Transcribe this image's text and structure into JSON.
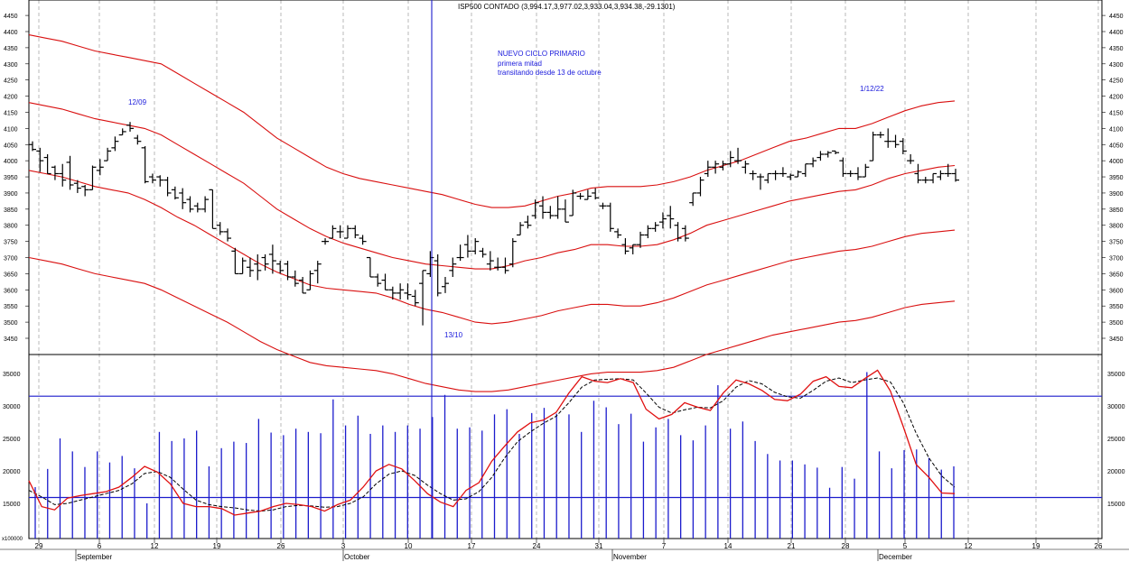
{
  "title": "ISP500 CONTADO (3,994.17,3,977.02,3,933.04,3,934.38,-29.1301)",
  "annotations": {
    "cycle_title": "NUEVO CICLO PRIMARIO",
    "cycle_line1": "primera mitad",
    "cycle_line2": "transitando desde 13 de octubre",
    "top_sep": "12/09",
    "bottom_oct": "13/10",
    "top_dec": "1/12/22"
  },
  "volume_unit_label": "x100000",
  "colors": {
    "bars": "#000000",
    "bands": "#d90f0f",
    "volume": "#1c1ccc",
    "oscillator_fast": "#e01010",
    "oscillator_slow": "#000000",
    "grid": "#a8a8a8"
  },
  "chart_data": [
    {
      "type": "ohlc",
      "name": "price",
      "ylim": [
        3400,
        4470
      ],
      "y_ticks": [
        3450,
        3500,
        3550,
        3600,
        3650,
        3700,
        3750,
        3800,
        3850,
        3900,
        3950,
        4000,
        4050,
        4100,
        4150,
        4200,
        4250,
        4300,
        4350,
        4400,
        4450
      ],
      "date_ticks": [
        "29",
        "6",
        "12",
        "19",
        "26",
        "3",
        "10",
        "17",
        "24",
        "31",
        "7",
        "14",
        "21",
        "28",
        "5",
        "12",
        "19",
        "26"
      ],
      "month_labels": [
        "September",
        "October",
        "November",
        "December"
      ],
      "ohlc": [
        [
          4050,
          4060,
          4030,
          4035
        ],
        [
          4030,
          4040,
          3965,
          4000
        ],
        [
          4010,
          4020,
          3960,
          3960
        ],
        [
          3980,
          3985,
          3940,
          3960
        ],
        [
          3960,
          3990,
          3920,
          3940
        ],
        [
          3995,
          4015,
          3910,
          3925
        ],
        [
          3930,
          3940,
          3900,
          3915
        ],
        [
          3920,
          3925,
          3890,
          3910
        ],
        [
          3910,
          3985,
          3910,
          3980
        ],
        [
          3970,
          4005,
          3955,
          3980
        ],
        [
          4000,
          4040,
          4000,
          4030
        ],
        [
          4040,
          4075,
          4030,
          4060
        ],
        [
          4080,
          4100,
          4080,
          4090
        ],
        [
          4110,
          4120,
          4090,
          4100
        ],
        [
          4070,
          4080,
          4050,
          4060
        ],
        [
          4040,
          4045,
          3930,
          3935
        ],
        [
          3950,
          3960,
          3930,
          3940
        ],
        [
          3950,
          3955,
          3920,
          3940
        ],
        [
          3940,
          3950,
          3890,
          3900
        ],
        [
          3910,
          3920,
          3880,
          3885
        ],
        [
          3900,
          3915,
          3850,
          3870
        ],
        [
          3880,
          3890,
          3840,
          3850
        ],
        [
          3860,
          3870,
          3840,
          3850
        ],
        [
          3850,
          3890,
          3840,
          3880
        ],
        [
          3910,
          3910,
          3790,
          3790
        ],
        [
          3800,
          3810,
          3770,
          3780
        ],
        [
          3780,
          3790,
          3750,
          3760
        ],
        [
          3720,
          3730,
          3650,
          3650
        ],
        [
          3650,
          3700,
          3650,
          3690
        ],
        [
          3670,
          3700,
          3640,
          3660
        ],
        [
          3680,
          3710,
          3630,
          3660
        ],
        [
          3700,
          3710,
          3660,
          3680
        ],
        [
          3710,
          3740,
          3650,
          3690
        ],
        [
          3680,
          3690,
          3650,
          3660
        ],
        [
          3680,
          3690,
          3630,
          3640
        ],
        [
          3640,
          3660,
          3610,
          3620
        ],
        [
          3630,
          3640,
          3590,
          3590
        ],
        [
          3600,
          3660,
          3600,
          3650
        ],
        [
          3660,
          3690,
          3620,
          3680
        ],
        [
          3750,
          3760,
          3740,
          3750
        ],
        [
          3760,
          3800,
          3760,
          3790
        ],
        [
          3780,
          3800,
          3760,
          3780
        ],
        [
          3760,
          3800,
          3760,
          3790
        ],
        [
          3790,
          3800,
          3760,
          3770
        ],
        [
          3760,
          3770,
          3740,
          3750
        ],
        [
          3700,
          3700,
          3640,
          3640
        ],
        [
          3640,
          3650,
          3610,
          3620
        ],
        [
          3630,
          3650,
          3600,
          3600
        ],
        [
          3600,
          3610,
          3570,
          3590
        ],
        [
          3590,
          3620,
          3570,
          3600
        ],
        [
          3590,
          3620,
          3570,
          3585
        ],
        [
          3580,
          3600,
          3550,
          3560
        ],
        [
          3620,
          3660,
          3490,
          3660
        ],
        [
          3650,
          3720,
          3640,
          3700
        ],
        [
          3690,
          3710,
          3580,
          3590
        ],
        [
          3610,
          3640,
          3590,
          3620
        ],
        [
          3660,
          3700,
          3640,
          3680
        ],
        [
          3700,
          3740,
          3690,
          3700
        ],
        [
          3740,
          3770,
          3700,
          3720
        ],
        [
          3720,
          3760,
          3710,
          3750
        ],
        [
          3720,
          3730,
          3700,
          3710
        ],
        [
          3680,
          3720,
          3660,
          3690
        ],
        [
          3670,
          3700,
          3660,
          3670
        ],
        [
          3670,
          3700,
          3650,
          3660
        ],
        [
          3680,
          3760,
          3670,
          3750
        ],
        [
          3770,
          3810,
          3770,
          3800
        ],
        [
          3810,
          3830,
          3790,
          3800
        ],
        [
          3830,
          3880,
          3820,
          3870
        ],
        [
          3860,
          3890,
          3820,
          3840
        ],
        [
          3840,
          3860,
          3820,
          3830
        ],
        [
          3830,
          3890,
          3820,
          3850
        ],
        [
          3850,
          3880,
          3810,
          3810
        ],
        [
          3830,
          3910,
          3830,
          3900
        ],
        [
          3890,
          3900,
          3880,
          3890
        ],
        [
          3880,
          3910,
          3880,
          3890
        ],
        [
          3900,
          3915,
          3880,
          3885
        ],
        [
          3860,
          3870,
          3850,
          3860
        ],
        [
          3860,
          3870,
          3780,
          3790
        ],
        [
          3780,
          3790,
          3760,
          3770
        ],
        [
          3740,
          3760,
          3710,
          3720
        ],
        [
          3730,
          3740,
          3710,
          3740
        ],
        [
          3740,
          3780,
          3730,
          3770
        ],
        [
          3770,
          3800,
          3760,
          3790
        ],
        [
          3790,
          3810,
          3780,
          3800
        ],
        [
          3810,
          3840,
          3790,
          3820
        ],
        [
          3830,
          3860,
          3790,
          3820
        ],
        [
          3800,
          3810,
          3750,
          3760
        ],
        [
          3790,
          3800,
          3750,
          3760
        ],
        [
          3870,
          3900,
          3860,
          3900
        ],
        [
          3900,
          3950,
          3890,
          3940
        ],
        [
          3960,
          4000,
          3950,
          3980
        ],
        [
          3980,
          4000,
          3960,
          3990
        ],
        [
          3980,
          4000,
          3970,
          3990
        ],
        [
          3990,
          4030,
          3980,
          4010
        ],
        [
          4000,
          4040,
          3990,
          4000
        ],
        [
          3980,
          4000,
          3960,
          3990
        ],
        [
          3960,
          3970,
          3940,
          3960
        ],
        [
          3950,
          3960,
          3910,
          3950
        ],
        [
          3940,
          3960,
          3930,
          3960
        ],
        [
          3960,
          3970,
          3940,
          3960
        ],
        [
          3960,
          3980,
          3950,
          3960
        ],
        [
          3950,
          3960,
          3940,
          3955
        ],
        [
          3950,
          3970,
          3950,
          3965
        ],
        [
          3960,
          3990,
          3950,
          3990
        ],
        [
          3990,
          4010,
          3980,
          4000
        ],
        [
          4010,
          4030,
          4000,
          4020
        ],
        [
          4020,
          4030,
          4010,
          4025
        ],
        [
          4030,
          4030,
          4020,
          4025
        ],
        [
          4000,
          4010,
          3950,
          3960
        ],
        [
          3960,
          3970,
          3950,
          3960
        ],
        [
          3960,
          3980,
          3940,
          3950
        ],
        [
          3950,
          3990,
          3950,
          3980
        ],
        [
          4000,
          4090,
          4000,
          4080
        ],
        [
          4080,
          4090,
          4070,
          4080
        ],
        [
          4060,
          4100,
          4040,
          4060
        ],
        [
          4060,
          4080,
          4040,
          4050
        ],
        [
          4060,
          4070,
          4020,
          4030
        ],
        [
          4000,
          4020,
          3990,
          4000
        ],
        [
          3960,
          3990,
          3930,
          3940
        ],
        [
          3940,
          3950,
          3930,
          3940
        ],
        [
          3940,
          3960,
          3930,
          3960
        ],
        [
          3950,
          3970,
          3940,
          3960
        ],
        [
          3960,
          3990,
          3950,
          3960
        ],
        [
          3960,
          3975,
          3935,
          3940
        ]
      ],
      "bands": {
        "outer_upper": [
          4390,
          4380,
          4370,
          4355,
          4340,
          4330,
          4320,
          4310,
          4300,
          4270,
          4240,
          4210,
          4180,
          4150,
          4110,
          4070,
          4040,
          4010,
          3980,
          3960,
          3945,
          3935,
          3925,
          3915,
          3905,
          3895,
          3880,
          3865,
          3855,
          3855,
          3860,
          3875,
          3890,
          3900,
          3915,
          3920,
          3920,
          3920,
          3925,
          3935,
          3950,
          3970,
          3985,
          4000,
          4020,
          4040,
          4060,
          4070,
          4085,
          4100,
          4100,
          4115,
          4135,
          4155,
          4170,
          4180,
          4185
        ],
        "mid_upper": [
          4180,
          4170,
          4160,
          4145,
          4130,
          4120,
          4110,
          4100,
          4080,
          4050,
          4020,
          3990,
          3960,
          3930,
          3890,
          3850,
          3820,
          3790,
          3765,
          3745,
          3730,
          3715,
          3700,
          3690,
          3680,
          3675,
          3670,
          3665,
          3665,
          3675,
          3690,
          3700,
          3715,
          3725,
          3740,
          3740,
          3735,
          3735,
          3740,
          3755,
          3775,
          3800,
          3815,
          3830,
          3845,
          3860,
          3875,
          3885,
          3895,
          3905,
          3910,
          3925,
          3945,
          3960,
          3970,
          3980,
          3985
        ],
        "mid_lower": [
          3970,
          3960,
          3950,
          3935,
          3920,
          3910,
          3900,
          3880,
          3855,
          3825,
          3800,
          3770,
          3740,
          3710,
          3680,
          3655,
          3635,
          3615,
          3605,
          3600,
          3595,
          3590,
          3575,
          3555,
          3540,
          3530,
          3515,
          3500,
          3495,
          3500,
          3510,
          3520,
          3535,
          3545,
          3555,
          3555,
          3550,
          3550,
          3560,
          3575,
          3595,
          3615,
          3630,
          3645,
          3660,
          3675,
          3690,
          3700,
          3710,
          3720,
          3725,
          3735,
          3750,
          3765,
          3775,
          3780,
          3785
        ],
        "lower": [
          3700,
          3690,
          3680,
          3665,
          3650,
          3640,
          3630,
          3620,
          3600,
          3575,
          3550,
          3525,
          3500,
          3470,
          3440,
          3415,
          3395,
          3375,
          3365,
          3360,
          3355,
          3350,
          3340,
          3325,
          3310,
          3300,
          3290,
          3285,
          3285,
          3290,
          3300,
          3310,
          3320,
          3330,
          3340,
          3345,
          3345,
          3345,
          3350,
          3360,
          3380,
          3400,
          3415,
          3430,
          3445,
          3460,
          3470,
          3480,
          3490,
          3500,
          3505,
          3515,
          3530,
          3545,
          3555,
          3560,
          3565
        ]
      }
    },
    {
      "type": "bar",
      "name": "volume",
      "ylim": [
        10000,
        37500
      ],
      "y_ticks": [
        15000,
        20000,
        25000,
        30000,
        35000
      ],
      "levels": [
        31500,
        15900
      ],
      "values": [
        17500,
        20300,
        25000,
        23000,
        20600,
        23000,
        21300,
        22300,
        20400,
        15000,
        26000,
        24600,
        25000,
        26200,
        20700,
        23500,
        24500,
        24300,
        28000,
        25900,
        25500,
        26500,
        26000,
        25800,
        31000,
        27000,
        28500,
        25700,
        27000,
        26000,
        27000,
        26500,
        28300,
        31700,
        26500,
        26700,
        26200,
        28700,
        29500,
        25700,
        28900,
        29700,
        28800,
        28700,
        26000,
        30800,
        29800,
        27200,
        28800,
        24500,
        26700,
        28000,
        25500,
        24700,
        27000,
        33200,
        26500,
        27600,
        24600,
        22600,
        21600,
        21600,
        21000,
        20500,
        17400,
        20600,
        18800,
        35200,
        23000,
        20400,
        23200,
        23300,
        22000,
        20200,
        20700
      ],
      "oscillator_fast": [
        18500,
        14500,
        14000,
        15800,
        16200,
        16500,
        16800,
        17500,
        19000,
        20700,
        19800,
        18000,
        15000,
        14500,
        14500,
        14200,
        13200,
        13500,
        13800,
        14500,
        15000,
        14800,
        14500,
        13800,
        14800,
        15500,
        17500,
        20000,
        21000,
        20300,
        18500,
        16500,
        15200,
        14500,
        17000,
        18200,
        21500,
        23800,
        26000,
        27400,
        27800,
        29000,
        32000,
        34500,
        33800,
        33600,
        34200,
        33600,
        29500,
        28000,
        28700,
        30500,
        29800,
        29300,
        32000,
        34000,
        33400,
        32400,
        31000,
        30800,
        31800,
        33800,
        34500,
        33000,
        32800,
        34200,
        35500,
        32300,
        26800,
        21000,
        19000,
        16600,
        16500
      ],
      "oscillator_slow": [
        17000,
        16000,
        14800,
        15000,
        15500,
        16000,
        16500,
        17000,
        18000,
        19600,
        19900,
        19000,
        17200,
        15500,
        14800,
        14500,
        14300,
        14000,
        13800,
        14000,
        14500,
        14700,
        14600,
        14400,
        14500,
        15000,
        16000,
        18000,
        19500,
        20000,
        19300,
        17800,
        16500,
        15500,
        15700,
        16800,
        19000,
        22000,
        24500,
        26000,
        27300,
        28400,
        30500,
        32900,
        34000,
        34100,
        34200,
        34000,
        32000,
        29800,
        28900,
        29400,
        29800,
        29700,
        30800,
        32900,
        33900,
        33400,
        32100,
        31400,
        31200,
        32400,
        33800,
        34300,
        33600,
        34000,
        34300,
        33700,
        30500,
        25800,
        22000,
        19200,
        17500
      ],
      "xlabel": "",
      "ylabel": ""
    }
  ]
}
